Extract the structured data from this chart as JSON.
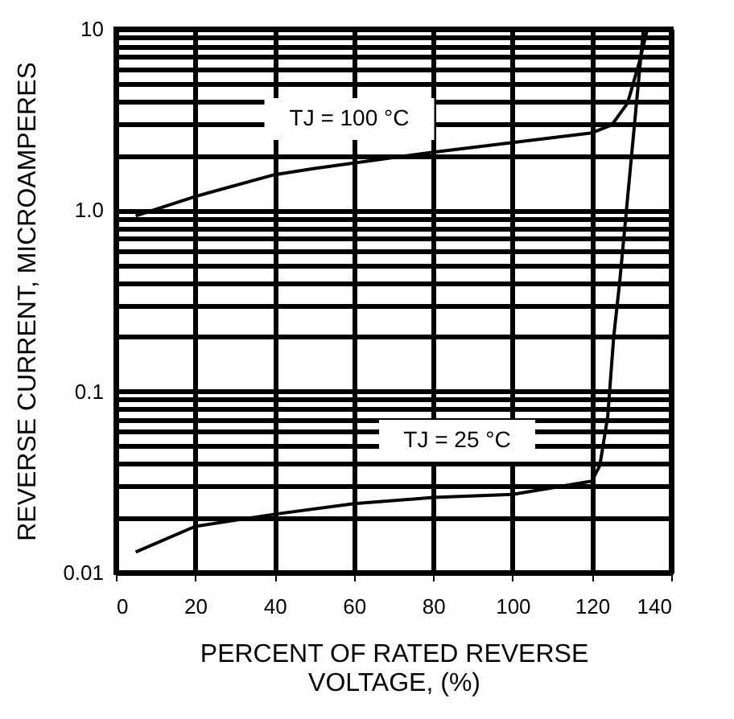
{
  "chart_data": {
    "type": "line",
    "xlabel": "PERCENT OF RATED REVERSE\nVOLTAGE, (%)",
    "ylabel": "REVERSE CURRENT, MICROAMPERES",
    "log": "y",
    "xlim": [
      0,
      140
    ],
    "xticks": [
      0,
      20,
      40,
      60,
      80,
      100,
      120,
      140
    ],
    "ylim": [
      0.01,
      10
    ],
    "yticks": [
      0.01,
      {
        "value": 0.02,
        "label": null
      },
      {
        "value": 0.03,
        "label": null
      },
      {
        "value": 0.04,
        "label": null
      },
      {
        "value": 0.05,
        "label": null
      },
      {
        "value": 0.06,
        "label": null
      },
      {
        "value": 0.07,
        "label": null
      },
      {
        "value": 0.08,
        "label": null
      },
      {
        "value": 0.09,
        "label": null
      },
      0.1,
      {
        "value": 0.2,
        "label": null
      },
      {
        "value": 0.3,
        "label": null
      },
      {
        "value": 0.4,
        "label": null
      },
      {
        "value": 0.5,
        "label": null
      },
      {
        "value": 0.6,
        "label": null
      },
      {
        "value": 0.7,
        "label": null
      },
      {
        "value": 0.8,
        "label": null
      },
      {
        "value": 0.9,
        "label": null
      },
      {
        "value": 1,
        "label": "1.0"
      },
      {
        "value": 2,
        "label": null
      },
      {
        "value": 3,
        "label": null
      },
      {
        "value": 4,
        "label": null
      },
      {
        "value": 5,
        "label": null
      },
      {
        "value": 6,
        "label": null
      },
      {
        "value": 7,
        "label": null
      },
      {
        "value": 8,
        "label": null
      },
      {
        "value": 9,
        "label": null
      },
      10
    ],
    "grid": true,
    "marker": "none",
    "line_style": "solid",
    "series": [
      {
        "color": "#000000",
        "x": [
          5,
          20,
          40,
          50,
          80,
          120,
          125,
          129,
          132,
          134
        ],
        "values": [
          0.93,
          1.19,
          1.57,
          1.7,
          2.09,
          2.67,
          2.95,
          3.9,
          6.6,
          10
        ]
      },
      {
        "color": "#000000",
        "x": [
          5,
          20,
          40,
          60,
          80,
          100,
          120,
          122,
          124,
          125.5,
          127,
          130,
          133
        ],
        "values": [
          0.013,
          0.018,
          0.021,
          0.024,
          0.026,
          0.027,
          0.032,
          0.039,
          0.073,
          0.2,
          0.4,
          2,
          10
        ]
      }
    ],
    "annotations": [
      "TJ = 100 °C",
      "TJ = 25 °C"
    ]
  }
}
